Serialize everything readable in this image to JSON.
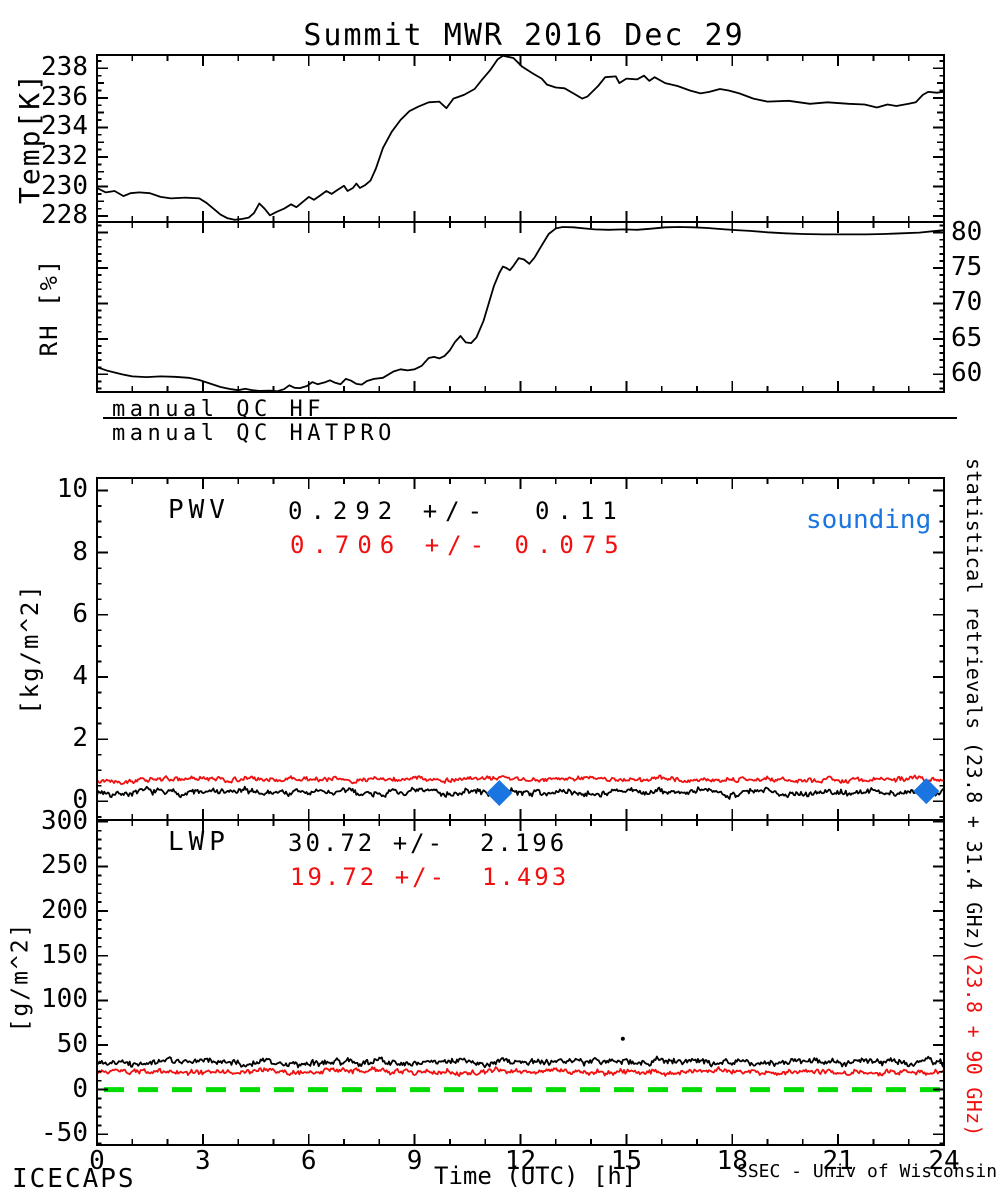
{
  "title": "Summit MWR 2016 Dec 29",
  "colors": {
    "black": "#000000",
    "red": "#f01010",
    "green": "#00dc00",
    "blue": "#1b75e0"
  },
  "qc": {
    "line1": "manual QC HF",
    "line2": "manual QC HATPRO"
  },
  "footer": {
    "left": "ICECAPS",
    "right": "SSEC - Univ of Wisconsin"
  },
  "right_label": {
    "black": "statistical retrievals (23.8 + 31.4 GHz)",
    "red": "(23.8 + 90 GHz)"
  },
  "chart_data": [
    {
      "id": "temp",
      "type": "line",
      "title": "Summit MWR 2016 Dec 29",
      "ylabel": "Temp[K]",
      "ylim": [
        227.6,
        238.9
      ],
      "yticks": [
        228,
        230,
        232,
        234,
        236,
        238
      ],
      "ytick_side": "left",
      "xlim": [
        0,
        24
      ],
      "grid": false,
      "points": [
        [
          0,
          229.9
        ],
        [
          0.25,
          229.6
        ],
        [
          0.5,
          229.7
        ],
        [
          0.75,
          229.35
        ],
        [
          0.95,
          229.55
        ],
        [
          1.2,
          229.6
        ],
        [
          1.5,
          229.55
        ],
        [
          1.8,
          229.3
        ],
        [
          2.1,
          229.2
        ],
        [
          2.5,
          229.25
        ],
        [
          2.9,
          229.2
        ],
        [
          3.1,
          228.9
        ],
        [
          3.3,
          228.5
        ],
        [
          3.5,
          228.1
        ],
        [
          3.7,
          227.85
        ],
        [
          3.9,
          227.75
        ],
        [
          4.1,
          227.8
        ],
        [
          4.3,
          227.9
        ],
        [
          4.45,
          228.2
        ],
        [
          4.6,
          228.85
        ],
        [
          4.75,
          228.5
        ],
        [
          4.9,
          228.05
        ],
        [
          5.1,
          228.3
        ],
        [
          5.3,
          228.5
        ],
        [
          5.5,
          228.8
        ],
        [
          5.65,
          228.6
        ],
        [
          5.8,
          228.9
        ],
        [
          6,
          229.3
        ],
        [
          6.15,
          229.1
        ],
        [
          6.3,
          229.35
        ],
        [
          6.5,
          229.7
        ],
        [
          6.65,
          229.5
        ],
        [
          6.8,
          229.75
        ],
        [
          7,
          230.05
        ],
        [
          7.1,
          229.7
        ],
        [
          7.25,
          229.9
        ],
        [
          7.35,
          230.2
        ],
        [
          7.45,
          229.9
        ],
        [
          7.6,
          230.1
        ],
        [
          7.75,
          230.4
        ],
        [
          7.9,
          231.2
        ],
        [
          8.1,
          232.6
        ],
        [
          8.35,
          233.7
        ],
        [
          8.6,
          234.5
        ],
        [
          8.85,
          235.1
        ],
        [
          9.1,
          235.4
        ],
        [
          9.4,
          235.7
        ],
        [
          9.7,
          235.75
        ],
        [
          9.9,
          235.3
        ],
        [
          10.1,
          235.95
        ],
        [
          10.4,
          236.2
        ],
        [
          10.7,
          236.6
        ],
        [
          10.9,
          237.2
        ],
        [
          11.15,
          237.9
        ],
        [
          11.35,
          238.6
        ],
        [
          11.5,
          238.85
        ],
        [
          11.8,
          238.7
        ],
        [
          12.05,
          238.1
        ],
        [
          12.35,
          237.65
        ],
        [
          12.6,
          237.3
        ],
        [
          12.75,
          236.9
        ],
        [
          13,
          236.7
        ],
        [
          13.25,
          236.65
        ],
        [
          13.5,
          236.3
        ],
        [
          13.75,
          235.95
        ],
        [
          13.9,
          236.1
        ],
        [
          14.2,
          236.8
        ],
        [
          14.4,
          237.4
        ],
        [
          14.7,
          237.45
        ],
        [
          14.8,
          237
        ],
        [
          15,
          237.3
        ],
        [
          15.3,
          237.25
        ],
        [
          15.5,
          237.5
        ],
        [
          15.65,
          237.15
        ],
        [
          15.8,
          237.4
        ],
        [
          16.1,
          237
        ],
        [
          16.45,
          236.8
        ],
        [
          16.8,
          236.5
        ],
        [
          17.1,
          236.3
        ],
        [
          17.35,
          236.4
        ],
        [
          17.65,
          236.6
        ],
        [
          17.9,
          236.5
        ],
        [
          18.2,
          236.3
        ],
        [
          18.6,
          235.95
        ],
        [
          19,
          235.75
        ],
        [
          19.6,
          235.8
        ],
        [
          20.2,
          235.6
        ],
        [
          20.7,
          235.7
        ],
        [
          21.3,
          235.6
        ],
        [
          21.75,
          235.55
        ],
        [
          22.1,
          235.35
        ],
        [
          22.4,
          235.55
        ],
        [
          22.65,
          235.45
        ],
        [
          23,
          235.6
        ],
        [
          23.2,
          235.7
        ],
        [
          23.4,
          236.2
        ],
        [
          23.55,
          236.4
        ],
        [
          23.8,
          236.35
        ],
        [
          24,
          236.4
        ]
      ]
    },
    {
      "id": "rh",
      "type": "line",
      "ylabel": "RH [%]",
      "ylim": [
        57.5,
        81.5
      ],
      "yticks": [
        60,
        65,
        70,
        75,
        80
      ],
      "ytick_side": "right",
      "xlim": [
        0,
        24
      ],
      "grid": false,
      "points": [
        [
          0,
          61
        ],
        [
          0.3,
          60.5
        ],
        [
          0.7,
          60
        ],
        [
          1,
          59.7
        ],
        [
          1.4,
          59.6
        ],
        [
          1.8,
          59.7
        ],
        [
          2.2,
          59.65
        ],
        [
          2.6,
          59.5
        ],
        [
          2.9,
          59.2
        ],
        [
          3.2,
          58.7
        ],
        [
          3.5,
          58.2
        ],
        [
          3.8,
          57.9
        ],
        [
          4,
          57.75
        ],
        [
          4.2,
          57.95
        ],
        [
          4.4,
          57.75
        ],
        [
          4.6,
          57.65
        ],
        [
          4.9,
          57.7
        ],
        [
          5.1,
          57.6
        ],
        [
          5.3,
          57.9
        ],
        [
          5.45,
          58.45
        ],
        [
          5.6,
          58.1
        ],
        [
          5.75,
          58.05
        ],
        [
          5.95,
          58.35
        ],
        [
          6.1,
          58.9
        ],
        [
          6.25,
          58.6
        ],
        [
          6.45,
          58.85
        ],
        [
          6.6,
          59.15
        ],
        [
          6.75,
          58.8
        ],
        [
          6.9,
          58.6
        ],
        [
          7.05,
          59.35
        ],
        [
          7.2,
          59.1
        ],
        [
          7.35,
          58.65
        ],
        [
          7.5,
          58.55
        ],
        [
          7.65,
          59.05
        ],
        [
          7.85,
          59.35
        ],
        [
          8.1,
          59.5
        ],
        [
          8.4,
          60.4
        ],
        [
          8.6,
          60.7
        ],
        [
          8.8,
          60.55
        ],
        [
          9,
          60.7
        ],
        [
          9.2,
          61.2
        ],
        [
          9.4,
          62.3
        ],
        [
          9.55,
          62.45
        ],
        [
          9.7,
          62.25
        ],
        [
          9.85,
          62.6
        ],
        [
          10,
          63.4
        ],
        [
          10.15,
          64.6
        ],
        [
          10.3,
          65.4
        ],
        [
          10.45,
          64.5
        ],
        [
          10.6,
          64.4
        ],
        [
          10.75,
          65.2
        ],
        [
          10.95,
          67.5
        ],
        [
          11.1,
          70
        ],
        [
          11.25,
          72.5
        ],
        [
          11.4,
          74.3
        ],
        [
          11.5,
          75.2
        ],
        [
          11.6,
          75
        ],
        [
          11.7,
          74.7
        ],
        [
          11.8,
          75.3
        ],
        [
          11.95,
          76.4
        ],
        [
          12.1,
          76.2
        ],
        [
          12.25,
          75.6
        ],
        [
          12.4,
          76.5
        ],
        [
          12.6,
          78.2
        ],
        [
          12.8,
          79.8
        ],
        [
          13,
          80.6
        ],
        [
          13.2,
          80.8
        ],
        [
          13.5,
          80.75
        ],
        [
          13.8,
          80.6
        ],
        [
          14.1,
          80.45
        ],
        [
          14.5,
          80.4
        ],
        [
          14.9,
          80.45
        ],
        [
          15.3,
          80.4
        ],
        [
          15.7,
          80.55
        ],
        [
          16.1,
          80.75
        ],
        [
          16.5,
          80.8
        ],
        [
          16.9,
          80.75
        ],
        [
          17.3,
          80.65
        ],
        [
          17.7,
          80.5
        ],
        [
          18.1,
          80.35
        ],
        [
          18.5,
          80.25
        ],
        [
          19,
          80.05
        ],
        [
          19.5,
          79.9
        ],
        [
          20,
          79.8
        ],
        [
          20.6,
          79.75
        ],
        [
          21.2,
          79.75
        ],
        [
          21.8,
          79.75
        ],
        [
          22.3,
          79.8
        ],
        [
          22.8,
          79.9
        ],
        [
          23.3,
          80
        ],
        [
          23.7,
          80.2
        ],
        [
          24,
          80.35
        ]
      ]
    },
    {
      "id": "pwv",
      "type": "line",
      "label": "PWV",
      "ylabel": "[kg/m^2]",
      "ylim": [
        -0.6,
        10.4
      ],
      "yticks": [
        0,
        2,
        4,
        6,
        8,
        10
      ],
      "ytick_side": "left",
      "xlim": [
        0,
        24
      ],
      "grid": false,
      "stat_black": "0.292 +/-  0.11",
      "stat_red": "0.706 +/- 0.075",
      "legend": "sounding",
      "legend_color": "blue",
      "series": [
        {
          "name": "statistical retrievals (23.8 + 31.4 GHz)",
          "color": "black",
          "mean": 0.292,
          "std": 0.11
        },
        {
          "name": "(23.8 + 90 GHz)",
          "color": "red",
          "mean": 0.706,
          "std": 0.075
        }
      ],
      "sounding_points": [
        [
          11.4,
          0.27
        ],
        [
          23.5,
          0.33
        ]
      ]
    },
    {
      "id": "lwp",
      "type": "line",
      "label": "LWP",
      "ylabel": "[g/m^2]",
      "ylim": [
        -62,
        302
      ],
      "yticks": [
        -50,
        0,
        50,
        100,
        150,
        200,
        250,
        300
      ],
      "ytick_side": "left",
      "xlim": [
        0,
        24
      ],
      "grid": false,
      "stat_black": "30.72 +/-  2.196",
      "stat_red": "19.72 +/-  1.493",
      "series": [
        {
          "color": "black",
          "mean": 30.72,
          "std": 2.196
        },
        {
          "color": "red",
          "mean": 19.72,
          "std": 1.493
        }
      ],
      "zero_line": {
        "value": 0,
        "color": "green",
        "style": "dashed"
      },
      "outlier_point": [
        14.9,
        57
      ],
      "xticks": [
        0,
        3,
        6,
        9,
        12,
        15,
        18,
        21,
        24
      ],
      "xlabel": "Time (UTC) [h]"
    }
  ]
}
